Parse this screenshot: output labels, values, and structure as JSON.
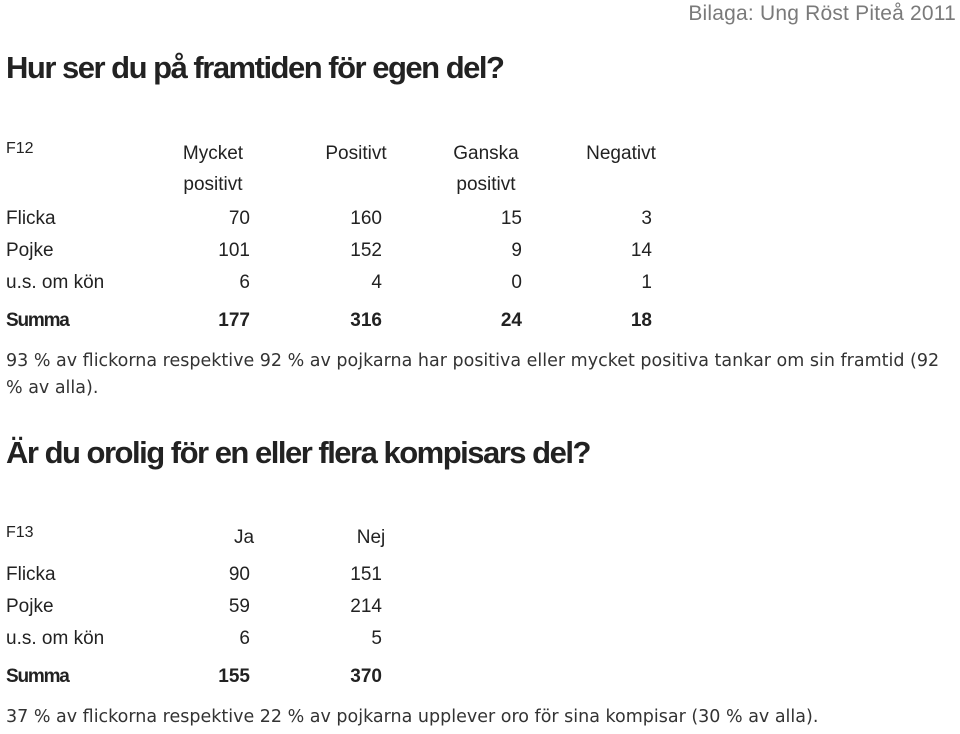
{
  "header_note": "Bilaga: Ung Röst Piteå 2011",
  "section1": {
    "heading": "Hur ser du på framtiden för egen del?",
    "question_code": "F12",
    "columns": [
      "Mycket positivt",
      "Positivt",
      "Ganska positivt",
      "Negativt"
    ],
    "rows": [
      {
        "label": "Flicka",
        "values": [
          "70",
          "160",
          "15",
          "3"
        ]
      },
      {
        "label": "Pojke",
        "values": [
          "101",
          "152",
          "9",
          "14"
        ]
      },
      {
        "label": "u.s. om kön",
        "values": [
          "6",
          "4",
          "0",
          "1"
        ]
      }
    ],
    "total": {
      "label": "Summa",
      "values": [
        "177",
        "316",
        "24",
        "18"
      ]
    },
    "summary": "93 % av flickorna respektive 92 % av pojkarna har positiva eller mycket positiva tankar om sin framtid (92 % av alla)."
  },
  "section2": {
    "heading": "Är du orolig för en eller flera kompisars del?",
    "question_code": "F13",
    "columns": [
      "Ja",
      "Nej"
    ],
    "rows": [
      {
        "label": "Flicka",
        "values": [
          "90",
          "151"
        ]
      },
      {
        "label": "Pojke",
        "values": [
          "59",
          "214"
        ]
      },
      {
        "label": "u.s. om kön",
        "values": [
          "6",
          "5"
        ]
      }
    ],
    "total": {
      "label": "Summa",
      "values": [
        "155",
        "370"
      ]
    },
    "summary": "37 % av flickorna respektive 22 % av pojkarna upplever oro för sina kompisar (30 % av alla)."
  }
}
